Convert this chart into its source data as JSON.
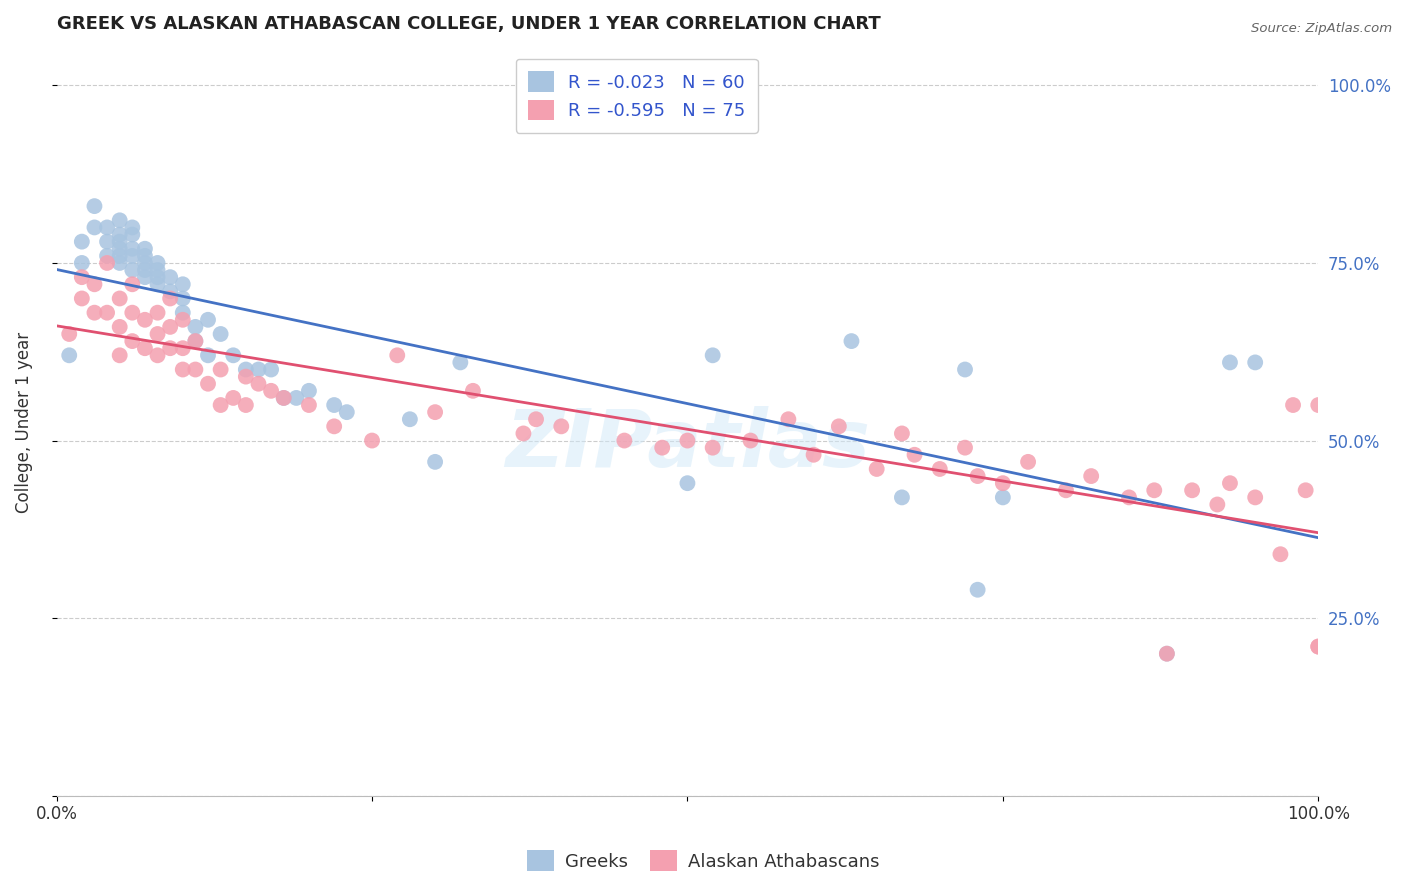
{
  "title": "GREEK VS ALASKAN ATHABASCAN COLLEGE, UNDER 1 YEAR CORRELATION CHART",
  "source": "Source: ZipAtlas.com",
  "ylabel": "College, Under 1 year",
  "watermark": "ZIPatlas",
  "legend_label1": "Greeks",
  "legend_label2": "Alaskan Athabascans",
  "legend_r1": "R = -0.023",
  "legend_n1": "N = 60",
  "legend_r2": "R = -0.595",
  "legend_n2": "N = 75",
  "greek_color": "#a8c4e0",
  "athabascan_color": "#f4a0b0",
  "greek_line_color": "#4472c4",
  "athabascan_line_color": "#e05070",
  "background_color": "#ffffff",
  "grid_color": "#cccccc",
  "right_tick_color": "#4472c4",
  "greek_scatter_x": [
    0.01,
    0.02,
    0.02,
    0.03,
    0.03,
    0.04,
    0.04,
    0.04,
    0.05,
    0.05,
    0.05,
    0.05,
    0.05,
    0.05,
    0.06,
    0.06,
    0.06,
    0.06,
    0.06,
    0.07,
    0.07,
    0.07,
    0.07,
    0.07,
    0.08,
    0.08,
    0.08,
    0.08,
    0.09,
    0.09,
    0.1,
    0.1,
    0.1,
    0.11,
    0.11,
    0.12,
    0.12,
    0.13,
    0.14,
    0.15,
    0.16,
    0.17,
    0.18,
    0.19,
    0.2,
    0.22,
    0.23,
    0.28,
    0.3,
    0.32,
    0.5,
    0.52,
    0.63,
    0.67,
    0.72,
    0.73,
    0.75,
    0.88,
    0.93,
    0.95
  ],
  "greek_scatter_y": [
    0.62,
    0.75,
    0.78,
    0.8,
    0.83,
    0.76,
    0.78,
    0.8,
    0.75,
    0.77,
    0.79,
    0.81,
    0.76,
    0.78,
    0.74,
    0.76,
    0.77,
    0.79,
    0.8,
    0.73,
    0.75,
    0.76,
    0.77,
    0.74,
    0.72,
    0.73,
    0.75,
    0.74,
    0.71,
    0.73,
    0.7,
    0.72,
    0.68,
    0.66,
    0.64,
    0.67,
    0.62,
    0.65,
    0.62,
    0.6,
    0.6,
    0.6,
    0.56,
    0.56,
    0.57,
    0.55,
    0.54,
    0.53,
    0.47,
    0.61,
    0.44,
    0.62,
    0.64,
    0.42,
    0.6,
    0.29,
    0.42,
    0.2,
    0.61,
    0.61
  ],
  "athabascan_scatter_x": [
    0.01,
    0.02,
    0.02,
    0.03,
    0.03,
    0.04,
    0.04,
    0.05,
    0.05,
    0.05,
    0.06,
    0.06,
    0.06,
    0.07,
    0.07,
    0.08,
    0.08,
    0.08,
    0.09,
    0.09,
    0.09,
    0.1,
    0.1,
    0.1,
    0.11,
    0.11,
    0.12,
    0.13,
    0.13,
    0.14,
    0.15,
    0.15,
    0.16,
    0.17,
    0.18,
    0.2,
    0.22,
    0.25,
    0.27,
    0.3,
    0.33,
    0.37,
    0.38,
    0.4,
    0.45,
    0.48,
    0.5,
    0.52,
    0.55,
    0.58,
    0.6,
    0.62,
    0.65,
    0.67,
    0.68,
    0.7,
    0.72,
    0.73,
    0.75,
    0.77,
    0.8,
    0.82,
    0.85,
    0.87,
    0.88,
    0.9,
    0.92,
    0.93,
    0.95,
    0.97,
    0.98,
    0.99,
    1.0,
    1.0,
    1.0
  ],
  "athabascan_scatter_y": [
    0.65,
    0.7,
    0.73,
    0.68,
    0.72,
    0.68,
    0.75,
    0.62,
    0.66,
    0.7,
    0.64,
    0.68,
    0.72,
    0.63,
    0.67,
    0.62,
    0.65,
    0.68,
    0.63,
    0.66,
    0.7,
    0.6,
    0.63,
    0.67,
    0.6,
    0.64,
    0.58,
    0.6,
    0.55,
    0.56,
    0.55,
    0.59,
    0.58,
    0.57,
    0.56,
    0.55,
    0.52,
    0.5,
    0.62,
    0.54,
    0.57,
    0.51,
    0.53,
    0.52,
    0.5,
    0.49,
    0.5,
    0.49,
    0.5,
    0.53,
    0.48,
    0.52,
    0.46,
    0.51,
    0.48,
    0.46,
    0.49,
    0.45,
    0.44,
    0.47,
    0.43,
    0.45,
    0.42,
    0.43,
    0.2,
    0.43,
    0.41,
    0.44,
    0.42,
    0.34,
    0.55,
    0.43,
    0.21,
    0.55,
    0.21
  ],
  "xlim": [
    0.0,
    1.0
  ],
  "ylim": [
    0.0,
    1.05
  ],
  "yticks": [
    0.0,
    0.25,
    0.5,
    0.75,
    1.0
  ],
  "right_yticklabels": [
    "",
    "25.0%",
    "50.0%",
    "75.0%",
    "100.0%"
  ]
}
